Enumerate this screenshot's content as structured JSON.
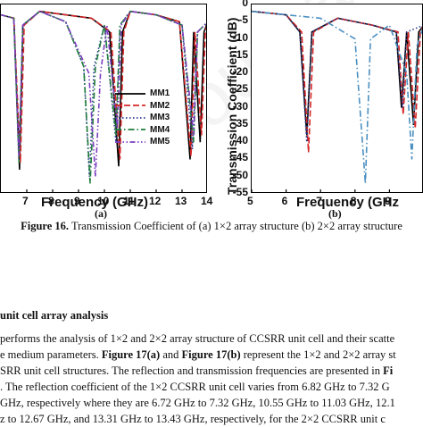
{
  "chart_data": [
    {
      "type": "line",
      "panel": "(a)",
      "xlabel": "Frequency (GHz)",
      "ylabel": "",
      "xlim": [
        6,
        14
      ],
      "ylim": [
        -55,
        0
      ],
      "x_ticks": [
        "7",
        "8",
        "9",
        "10",
        "11",
        "12",
        "13",
        "14"
      ],
      "legend_position": "right",
      "series": [
        {
          "name": "MM1",
          "color": "#000000",
          "style": "solid",
          "points": [
            [
              6.0,
              -3
            ],
            [
              6.5,
              -4
            ],
            [
              6.72,
              -48
            ],
            [
              6.85,
              -6
            ],
            [
              7.5,
              -2
            ],
            [
              8.5,
              -3
            ],
            [
              9.5,
              -4
            ],
            [
              10.2,
              -8
            ],
            [
              10.55,
              -47
            ],
            [
              10.7,
              -8
            ],
            [
              11.0,
              -2
            ],
            [
              12.0,
              -3
            ],
            [
              12.9,
              -5
            ],
            [
              13.31,
              -45
            ],
            [
              13.45,
              -8
            ],
            [
              13.7,
              -40
            ],
            [
              13.85,
              -8
            ],
            [
              14.0,
              -5
            ]
          ]
        },
        {
          "name": "MM2",
          "color": "#d62728",
          "style": "dash",
          "points": [
            [
              6.0,
              -3
            ],
            [
              6.5,
              -4
            ],
            [
              6.75,
              -46
            ],
            [
              6.9,
              -6
            ],
            [
              7.5,
              -2
            ],
            [
              8.5,
              -3
            ],
            [
              9.5,
              -4
            ],
            [
              10.25,
              -8
            ],
            [
              10.6,
              -45
            ],
            [
              10.75,
              -8
            ],
            [
              11.0,
              -2
            ],
            [
              12.0,
              -3
            ],
            [
              12.9,
              -5
            ],
            [
              13.35,
              -44
            ],
            [
              13.5,
              -8
            ],
            [
              13.75,
              -38
            ],
            [
              13.9,
              -8
            ],
            [
              14.0,
              -5
            ]
          ]
        },
        {
          "name": "MM3",
          "color": "#2b3a8f",
          "style": "dot",
          "points": [
            [
              6.0,
              -3
            ],
            [
              6.5,
              -4
            ],
            [
              6.7,
              -46
            ],
            [
              6.85,
              -6
            ],
            [
              7.5,
              -2
            ],
            [
              8.5,
              -5
            ],
            [
              9.2,
              -18
            ],
            [
              9.42,
              -50
            ],
            [
              9.6,
              -18
            ],
            [
              10.0,
              -6
            ],
            [
              10.45,
              -40
            ],
            [
              10.6,
              -6
            ],
            [
              11.0,
              -2
            ],
            [
              12.0,
              -3
            ],
            [
              13.0,
              -6
            ],
            [
              13.4,
              -42
            ],
            [
              13.6,
              -8
            ],
            [
              14.0,
              -5
            ]
          ]
        },
        {
          "name": "MM4",
          "color": "#1e7d3a",
          "style": "dashdot",
          "points": [
            [
              6.0,
              -3
            ],
            [
              6.5,
              -4
            ],
            [
              6.7,
              -46
            ],
            [
              6.85,
              -6
            ],
            [
              7.5,
              -2
            ],
            [
              8.5,
              -5
            ],
            [
              9.2,
              -18
            ],
            [
              9.45,
              -52
            ],
            [
              9.65,
              -18
            ],
            [
              10.0,
              -6
            ],
            [
              10.45,
              -38
            ],
            [
              10.6,
              -6
            ],
            [
              11.0,
              -2
            ],
            [
              12.0,
              -3
            ],
            [
              13.0,
              -6
            ],
            [
              13.45,
              -40
            ],
            [
              13.6,
              -8
            ],
            [
              14.0,
              -5
            ]
          ]
        },
        {
          "name": "MM5",
          "color": "#7b3fbf",
          "style": "dashdotdot",
          "points": [
            [
              6.0,
              -3
            ],
            [
              6.5,
              -4
            ],
            [
              6.7,
              -44
            ],
            [
              6.85,
              -6
            ],
            [
              7.5,
              -2
            ],
            [
              8.5,
              -5
            ],
            [
              9.4,
              -20
            ],
            [
              9.65,
              -50
            ],
            [
              9.85,
              -20
            ],
            [
              10.1,
              -6
            ],
            [
              10.5,
              -36
            ],
            [
              10.65,
              -6
            ],
            [
              11.0,
              -2
            ],
            [
              12.0,
              -3
            ],
            [
              13.0,
              -6
            ],
            [
              13.45,
              -38
            ],
            [
              13.6,
              -8
            ],
            [
              14.0,
              -5
            ]
          ]
        }
      ]
    },
    {
      "type": "line",
      "panel": "(b)",
      "xlabel": "Frequency (GHz",
      "ylabel": "Transmission Coefficient (dB)",
      "xlim": [
        5,
        10
      ],
      "ylim": [
        -55,
        0
      ],
      "x_ticks": [
        "5",
        "6",
        "7",
        "8",
        "9"
      ],
      "y_ticks": [
        "0",
        "-5",
        "-10",
        "-15",
        "-20",
        "-25",
        "-30",
        "-35",
        "-40",
        "-45",
        "-50",
        "-55"
      ],
      "series": [
        {
          "color": "#000000",
          "style": "solid",
          "points": [
            [
              5.0,
              -2
            ],
            [
              6.0,
              -3
            ],
            [
              6.4,
              -8
            ],
            [
              6.6,
              -38
            ],
            [
              6.75,
              -8
            ],
            [
              7.5,
              -4
            ],
            [
              8.5,
              -6
            ],
            [
              9.2,
              -8
            ],
            [
              9.35,
              -30
            ],
            [
              9.5,
              -8
            ],
            [
              9.7,
              -35
            ],
            [
              9.85,
              -8
            ],
            [
              10.0,
              -6
            ]
          ]
        },
        {
          "color": "#d62728",
          "style": "dash",
          "points": [
            [
              5.0,
              -2
            ],
            [
              6.0,
              -3
            ],
            [
              6.45,
              -8
            ],
            [
              6.65,
              -43
            ],
            [
              6.8,
              -8
            ],
            [
              7.5,
              -4
            ],
            [
              8.5,
              -6
            ],
            [
              9.25,
              -8
            ],
            [
              9.4,
              -32
            ],
            [
              9.55,
              -8
            ],
            [
              9.75,
              -36
            ],
            [
              9.9,
              -8
            ],
            [
              10.0,
              -6
            ]
          ]
        },
        {
          "color": "#2b3a8f",
          "style": "dot",
          "points": [
            [
              5.0,
              -2
            ],
            [
              6.0,
              -3
            ],
            [
              6.4,
              -8
            ],
            [
              6.6,
              -40
            ],
            [
              6.75,
              -8
            ],
            [
              7.5,
              -4
            ],
            [
              8.5,
              -6
            ],
            [
              9.2,
              -8
            ],
            [
              9.38,
              -30
            ],
            [
              9.5,
              -8
            ],
            [
              10.0,
              -6
            ]
          ]
        },
        {
          "color": "#4a8fc0",
          "style": "dashdot",
          "points": [
            [
              5.0,
              -2
            ],
            [
              6.0,
              -3
            ],
            [
              7.0,
              -4
            ],
            [
              8.0,
              -10
            ],
            [
              8.3,
              -52
            ],
            [
              8.45,
              -10
            ],
            [
              9.0,
              -6
            ],
            [
              9.5,
              -20
            ],
            [
              9.65,
              -45
            ],
            [
              9.8,
              -12
            ],
            [
              10.0,
              -6
            ]
          ]
        }
      ]
    }
  ],
  "panel_labels": {
    "a": "(a)",
    "b": "(b)"
  },
  "caption": {
    "label": "Figure 16.",
    "text": " Transmission Coefficient of (a) 1×2 array structure (b) 2×2 array structure"
  },
  "section_heading": "unit cell array analysis",
  "body_lines": [
    "performs the analysis of 1×2 and 2×2 array structure of CCSRR unit cell and their scatte",
    "e medium parameters. ",
    "SRR unit cell structures. The reflection and transmission frequencies are presented in ",
    ". The reflection coefficient of the 1×2 CCSRR unit cell varies from 6.82 GHz to 7.32 G",
    " GHz, respectively where they are 6.72 GHz to 7.32 GHz, 10.55 GHz to 11.03 GHz, 12.1",
    "z to 12.67 GHz, and 13.31 GHz to 13.43 GHz, respectively, for the 2×2 CCSRR unit c"
  ],
  "inline": {
    "fig17a": "Figure 17(a)",
    "and": " and ",
    "fig17b": "Figure 17(b)",
    "represent": " represent the 1×2 and 2×2 array st",
    "fi": "Fi"
  },
  "watermark": "Journal Pre-proof"
}
